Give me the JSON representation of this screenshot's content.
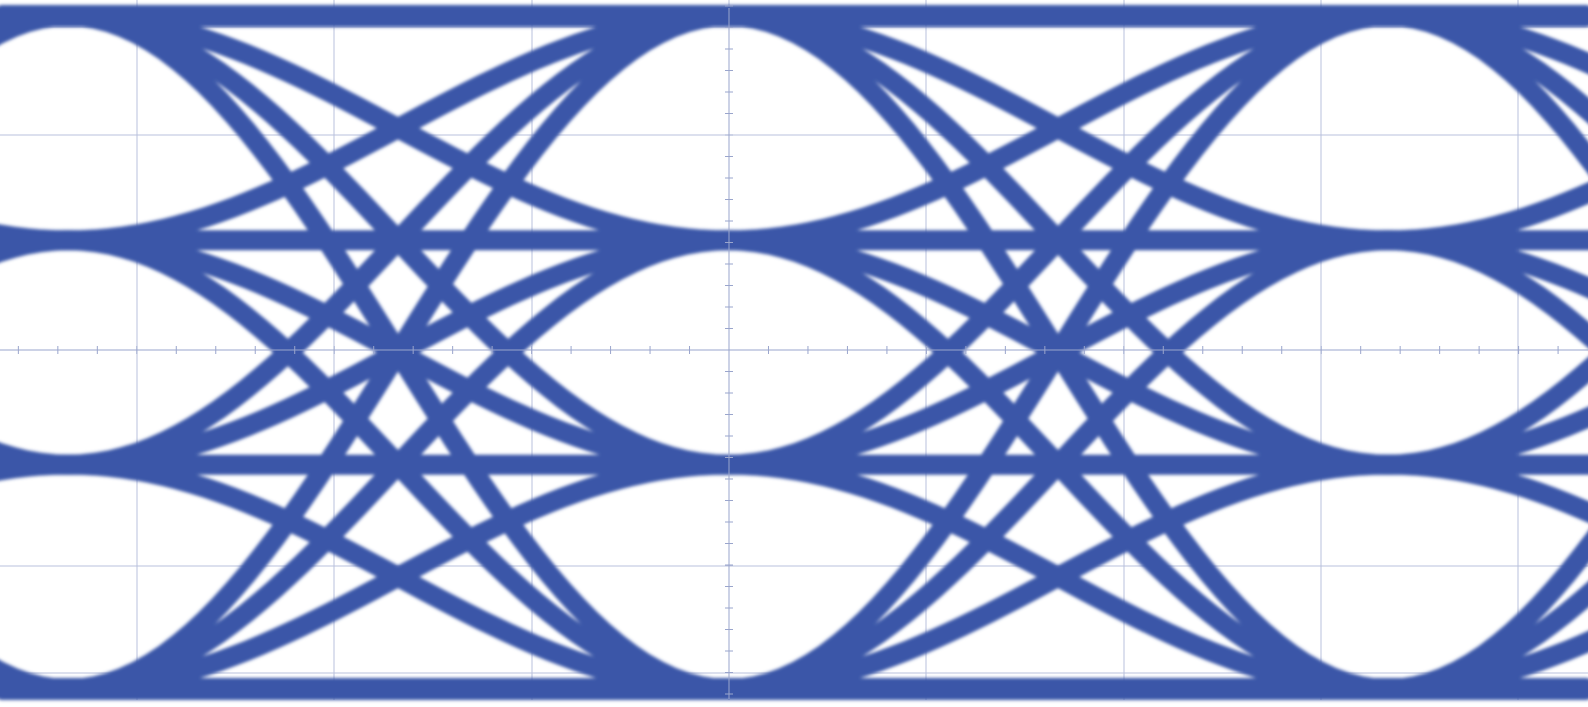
{
  "chart_data": {
    "type": "line",
    "title": "",
    "xlabel": "",
    "ylabel": "",
    "signal": "PAM4",
    "levels": [
      -3,
      -1,
      1,
      3
    ],
    "unit_intervals_visible": 2,
    "grid": true,
    "center_axes_with_minor_ticks": true,
    "colors": {
      "trace": "#3a56a8",
      "grid": "#b8c0dc",
      "axis": "#9aa5cc",
      "background": "#ffffff"
    }
  }
}
